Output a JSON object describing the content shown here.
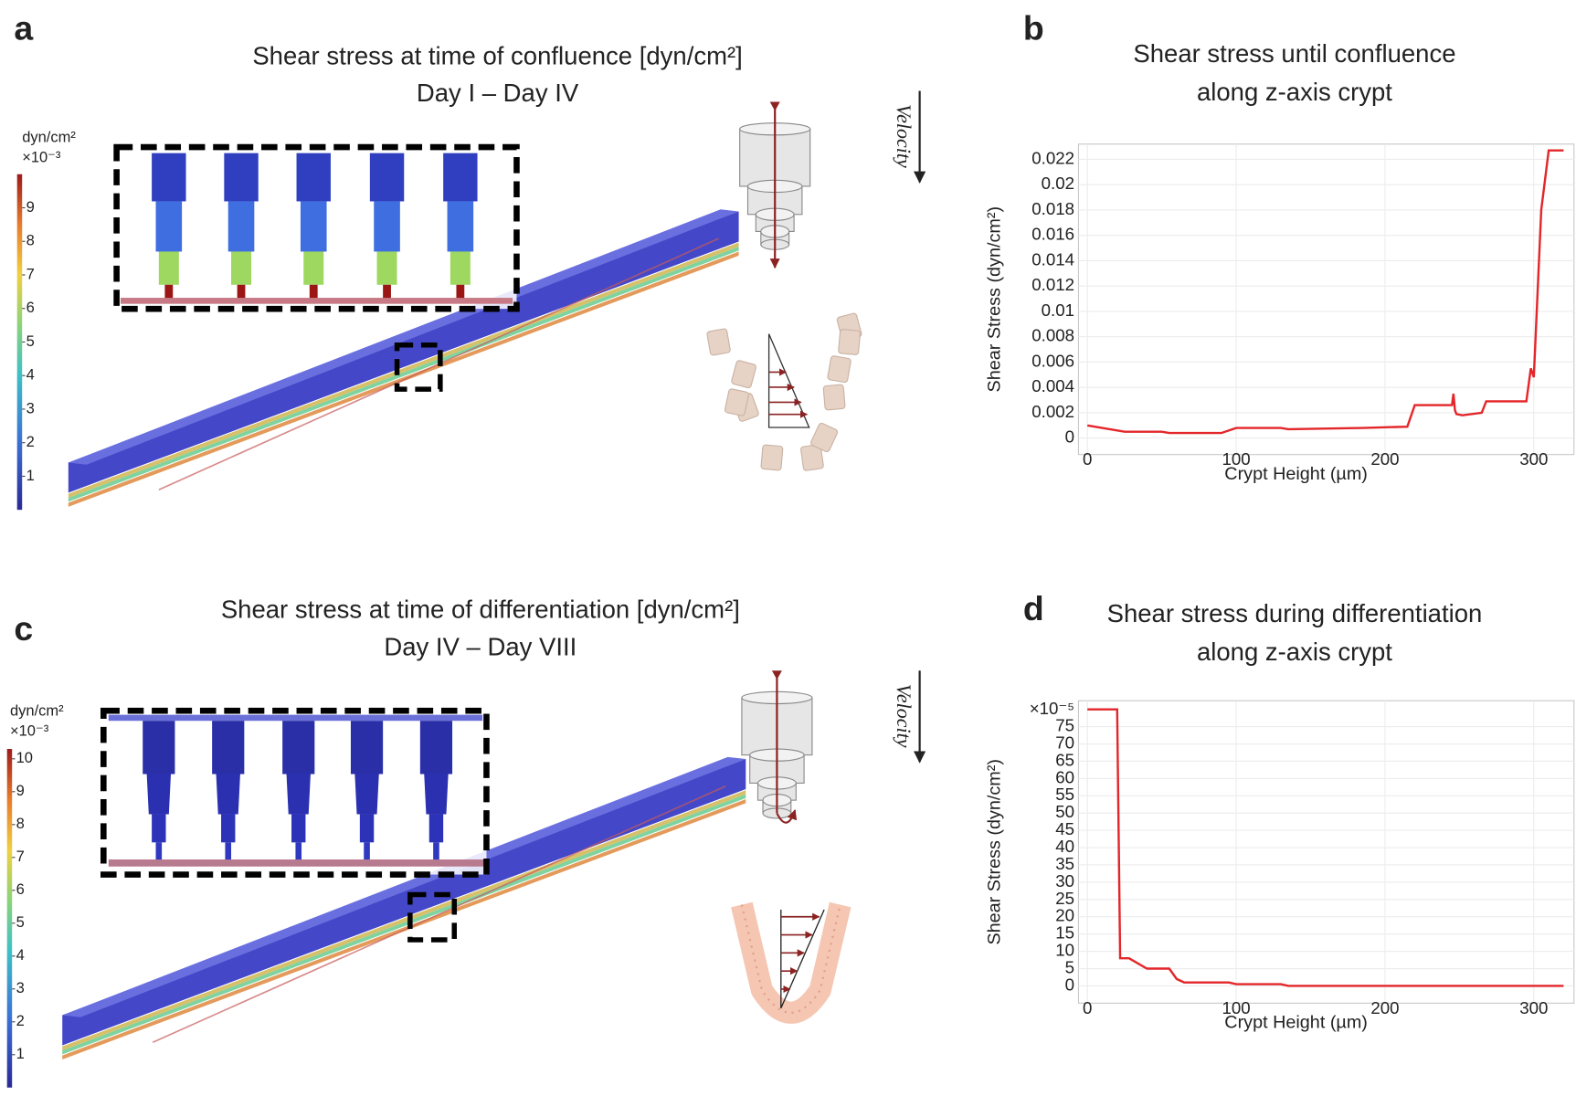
{
  "panel_labels": [
    "a",
    "b",
    "c",
    "d"
  ],
  "panels": [
    {
      "title": "Shear stress at time of confluence [dyn/cm²]",
      "subtitle": "Day I – Day IV",
      "velocity_label": "Velocity",
      "colorbar": {
        "unit": "dyn/cm²",
        "multiplier": "×10⁻³",
        "lim": [
          0,
          10
        ],
        "ticks": [
          1,
          2,
          3,
          4,
          5,
          6,
          7,
          8,
          9
        ]
      }
    },
    {
      "title": "Shear stress at time of differentiation [dyn/cm²]",
      "subtitle": "Day IV – Day VIII",
      "velocity_label": "Velocity",
      "colorbar": {
        "unit": "dyn/cm²",
        "multiplier": "×10⁻³",
        "lim": [
          0,
          10.3
        ],
        "ticks": [
          1,
          2,
          3,
          4,
          5,
          6,
          7,
          8,
          9,
          10
        ]
      }
    }
  ],
  "chart_data": [
    {
      "type": "line",
      "title": [
        "Shear stress until confluence",
        "along z-axis crypt"
      ],
      "xlabel": "Crypt Height (µm)",
      "ylabel": "Shear Stress (dyn/cm²)",
      "x": [
        0,
        25,
        50,
        55,
        90,
        100,
        130,
        135,
        185,
        215,
        220,
        245,
        246,
        247,
        248,
        252,
        265,
        268,
        295,
        298,
        300,
        305,
        310,
        320
      ],
      "values": [
        0.001,
        0.0005,
        0.0005,
        0.0004,
        0.0004,
        0.0008,
        0.0008,
        0.0007,
        0.0008,
        0.0009,
        0.0026,
        0.0026,
        0.0035,
        0.0022,
        0.0019,
        0.0018,
        0.002,
        0.0029,
        0.0029,
        0.0055,
        0.0048,
        0.018,
        0.0227,
        0.0227
      ],
      "color": "#e3262a",
      "xlim": [
        -6,
        327
      ],
      "ylim": [
        -0.0013,
        0.0232
      ],
      "xticks": [
        0,
        100,
        200,
        300
      ],
      "yticks": [
        0,
        0.002,
        0.004,
        0.006,
        0.008,
        0.01,
        0.012,
        0.014,
        0.016,
        0.018,
        0.02,
        0.022
      ],
      "grid": true
    },
    {
      "type": "line",
      "title": [
        "Shear stress during differentiation",
        "along z-axis crypt"
      ],
      "xlabel": "Crypt Height (µm)",
      "ylabel": "Shear Stress (dyn/cm²)",
      "y_multiplier": "×10⁻⁵",
      "x": [
        0,
        20,
        22,
        28,
        40,
        55,
        60,
        65,
        95,
        100,
        130,
        135,
        320
      ],
      "values": [
        80,
        80,
        8,
        8,
        5,
        5,
        2,
        1,
        1,
        0.5,
        0.5,
        0,
        0
      ],
      "color": "#e3262a",
      "xlim": [
        -6,
        327
      ],
      "ylim": [
        -5,
        82.5
      ],
      "xticks": [
        0,
        100,
        200,
        300
      ],
      "yticks": [
        0,
        5,
        10,
        15,
        20,
        25,
        30,
        35,
        40,
        45,
        50,
        55,
        60,
        65,
        70,
        75
      ],
      "grid": true
    }
  ]
}
